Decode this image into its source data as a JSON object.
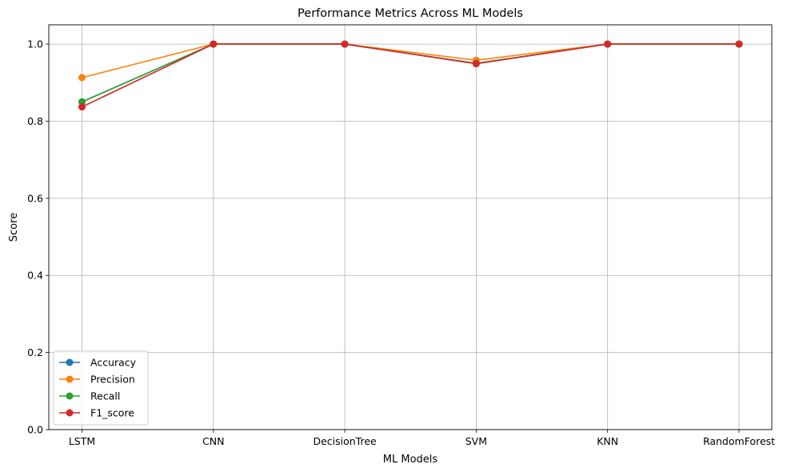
{
  "chart_data": {
    "type": "line",
    "title": "Performance Metrics Across ML Models",
    "xlabel": "ML Models",
    "ylabel": "Score",
    "categories": [
      "LSTM",
      "CNN",
      "DecisionTree",
      "SVM",
      "KNN",
      "RandomForest"
    ],
    "ylim": [
      0.0,
      1.05
    ],
    "yticks": [
      0.0,
      0.2,
      0.4,
      0.6,
      0.8,
      1.0
    ],
    "ytick_labels": [
      "0.0",
      "0.2",
      "0.4",
      "0.6",
      "0.8",
      "1.0"
    ],
    "grid": true,
    "legend_position": "lower-left",
    "series": [
      {
        "name": "Accuracy",
        "color": "#1f77b4",
        "values": [
          0.85,
          1.0,
          1.0,
          0.95,
          1.0,
          1.0
        ]
      },
      {
        "name": "Precision",
        "color": "#ff7f0e",
        "values": [
          0.913,
          1.0,
          1.0,
          0.958,
          1.0,
          1.0
        ]
      },
      {
        "name": "Recall",
        "color": "#2ca02c",
        "values": [
          0.85,
          1.0,
          1.0,
          0.95,
          1.0,
          1.0
        ]
      },
      {
        "name": "F1_score",
        "color": "#d62728",
        "values": [
          0.837,
          1.0,
          1.0,
          0.949,
          1.0,
          1.0
        ]
      }
    ]
  }
}
